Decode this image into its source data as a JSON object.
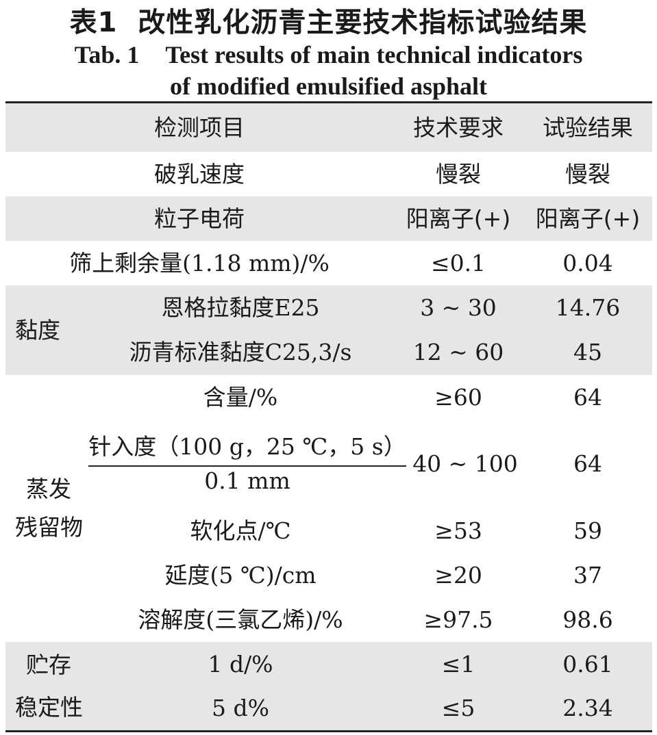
{
  "title": {
    "cn_number": "表1",
    "cn_text": "改性乳化沥青主要技术指标试验结果",
    "en_number": "Tab. 1",
    "en_line1": "Test results of main technical indicators",
    "en_line2": "of modified emulsified asphalt"
  },
  "table": {
    "headers": {
      "item": "检测项目",
      "requirement": "技术要求",
      "result": "试验结果"
    },
    "rows": {
      "breaking": {
        "item": "破乳速度",
        "requirement": "慢裂",
        "result": "慢裂"
      },
      "charge": {
        "item": "粒子电荷",
        "requirement": "阳离子(+)",
        "result": "阳离子(+)"
      },
      "sieve": {
        "item": "筛上剩余量(1.18 mm)/%",
        "requirement": "≤0.1",
        "result": "0.04"
      }
    },
    "viscosity": {
      "group": "黏度",
      "engler": {
        "item": "恩格拉黏度E25",
        "requirement": "3 ~ 30",
        "result": "14.76"
      },
      "standard": {
        "item": "沥青标准黏度C25,3/s",
        "requirement": "12 ~ 60",
        "result": "45"
      }
    },
    "residue": {
      "group_line1": "蒸发",
      "group_line2": "残留物",
      "content": {
        "item": "含量/%",
        "requirement": "≥60",
        "result": "64"
      },
      "penetration": {
        "item_num": "针入度（100 g，25 ℃，5 s）",
        "item_den": "0.1 mm",
        "requirement": "40 ~ 100",
        "result": "64"
      },
      "softening": {
        "item": "软化点/℃",
        "requirement": "≥53",
        "result": "59"
      },
      "ductility": {
        "item": "延度(5 ℃)/cm",
        "requirement": "≥20",
        "result": "37"
      },
      "solubility": {
        "item": "溶解度(三氯乙烯)/%",
        "requirement": "≥97.5",
        "result": "98.6"
      }
    },
    "storage": {
      "group_line1": "贮存",
      "group_line2": "稳定性",
      "d1": {
        "item": "1 d/%",
        "requirement": "≤1",
        "result": "0.61"
      },
      "d5": {
        "item": "5 d%",
        "requirement": "≤5",
        "result": "2.34"
      }
    }
  }
}
